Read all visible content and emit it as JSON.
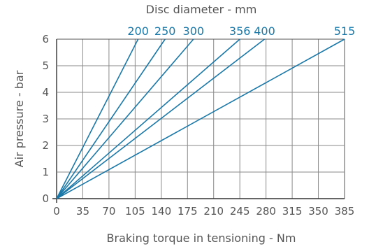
{
  "chart_data": {
    "type": "line",
    "title": "Disc diameter - mm",
    "xlabel": "Braking torque in tensioning - Nm",
    "ylabel": "Air pressure - bar",
    "xlim": [
      0,
      385
    ],
    "ylim": [
      0,
      6
    ],
    "x_ticks": [
      "0",
      "35",
      "70",
      "105",
      "140",
      "175",
      "210",
      "245",
      "280",
      "315",
      "350",
      "385"
    ],
    "y_ticks": [
      "0",
      "1",
      "2",
      "3",
      "4",
      "5",
      "6"
    ],
    "grid": true,
    "line_color": "#1a78a8",
    "series": [
      {
        "name": "200",
        "x": [
          0,
          109
        ],
        "y": [
          0,
          6
        ]
      },
      {
        "name": "250",
        "x": [
          0,
          145
        ],
        "y": [
          0,
          6
        ]
      },
      {
        "name": "300",
        "x": [
          0,
          183
        ],
        "y": [
          0,
          6
        ]
      },
      {
        "name": "356",
        "x": [
          0,
          245
        ],
        "y": [
          0,
          6
        ]
      },
      {
        "name": "400",
        "x": [
          0,
          278
        ],
        "y": [
          0,
          6
        ]
      },
      {
        "name": "515",
        "x": [
          0,
          385
        ],
        "y": [
          0,
          6
        ]
      }
    ]
  }
}
